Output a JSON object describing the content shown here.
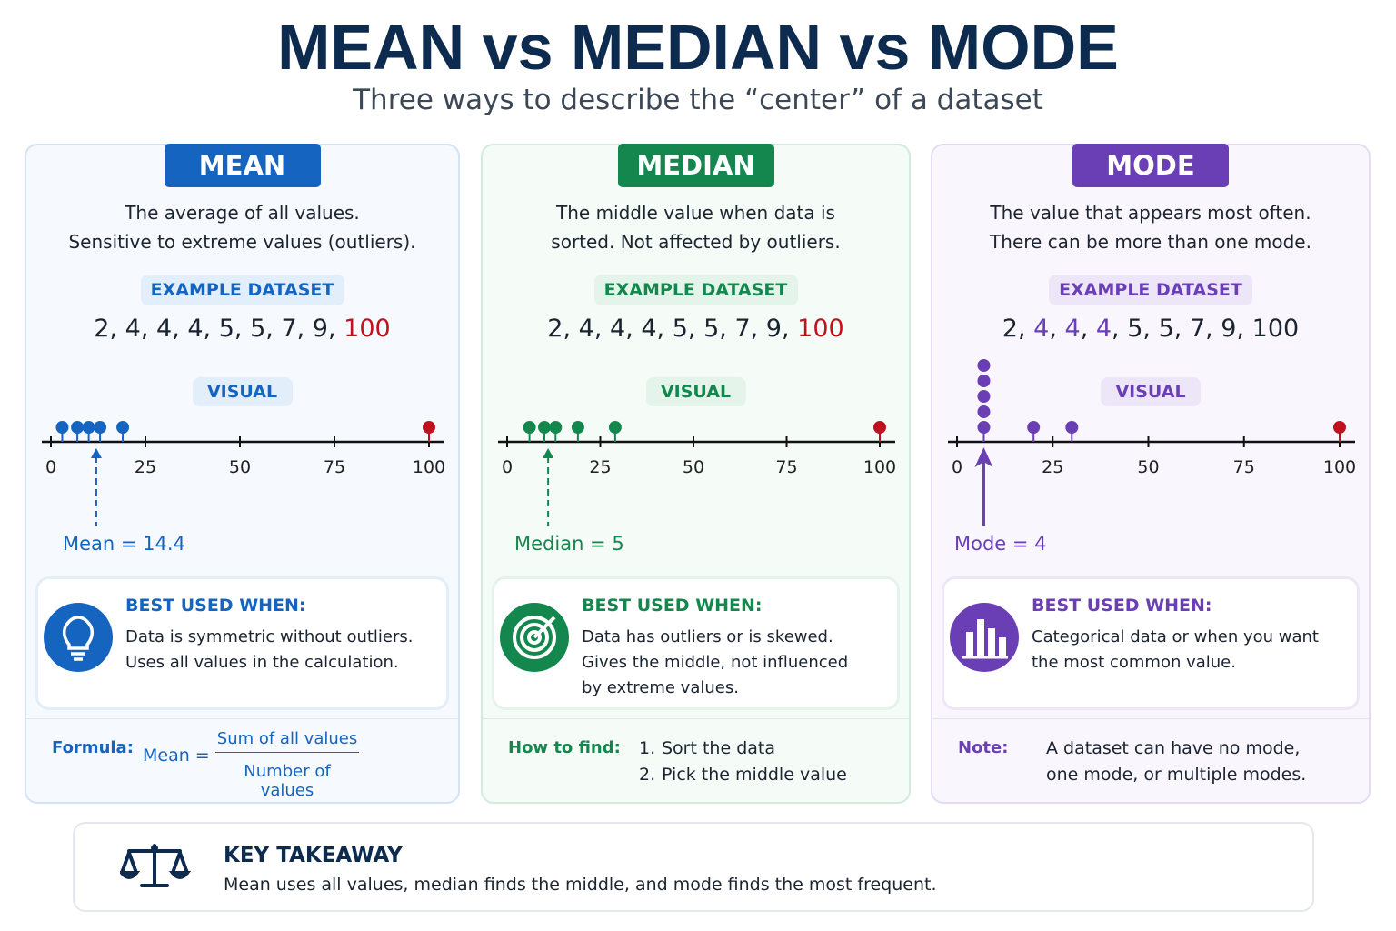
{
  "title": "MEAN vs MEDIAN vs MODE",
  "subtitle": "Three ways to describe the “center” of a dataset",
  "panels": [
    {
      "name": "MEAN",
      "color": "#1565c0",
      "soft": "#e3eefb",
      "description": [
        "The average of all values.",
        "Sensitive to extreme values (outliers)."
      ],
      "example_label": "EXAMPLE DATASET",
      "dataset": [
        2,
        4,
        4,
        4,
        5,
        5,
        7,
        9,
        100
      ],
      "highlight": [
        8
      ],
      "highlight_color": "#c0111f",
      "visual_label": "VISUAL",
      "xlim": [
        0,
        100
      ],
      "xticks": [
        0,
        25,
        50,
        75,
        100
      ],
      "dots": [
        3,
        7,
        10,
        13,
        19
      ],
      "outliers": [
        100
      ],
      "outlier_color": "#c0111f",
      "marker": 12,
      "marker_style": "dashed",
      "marker_label": "Mean = 14.4",
      "best_title": "BEST USED WHEN:",
      "best_text": [
        "Data is symmetric without outliers.",
        "Uses all values in the calculation."
      ],
      "footer": {
        "label": "Formula:",
        "lhs": "Mean =",
        "numerator": "Sum of all values",
        "denominator": "Number of values"
      }
    },
    {
      "name": "MEDIAN",
      "color": "#14874e",
      "soft": "#e4f4ea",
      "description": [
        "The middle value when data is",
        "sorted. Not affected by outliers."
      ],
      "example_label": "EXAMPLE DATASET",
      "dataset": [
        2,
        4,
        4,
        4,
        5,
        5,
        7,
        9,
        100
      ],
      "highlight": [
        8
      ],
      "highlight_color": "#c0111f",
      "visual_label": "VISUAL",
      "xlim": [
        0,
        100
      ],
      "xticks": [
        0,
        25,
        50,
        75,
        100
      ],
      "dots": [
        6,
        10,
        13,
        19,
        29
      ],
      "outliers": [
        100
      ],
      "outlier_color": "#c0111f",
      "marker": 11,
      "marker_style": "dashed",
      "marker_label": "Median = 5",
      "best_title": "BEST USED WHEN:",
      "best_text": [
        "Data has outliers or is skewed.",
        "Gives the middle, not influenced",
        "by extreme values."
      ],
      "footer": {
        "label": "How to find:",
        "steps": [
          "1.",
          "2."
        ],
        "items": [
          "Sort the data",
          "Pick the middle value"
        ]
      }
    },
    {
      "name": "MODE",
      "color": "#6a3fb5",
      "soft": "#ece6f8",
      "description": [
        "The value that appears most often.",
        "There can be more than one mode."
      ],
      "example_label": "EXAMPLE DATASET",
      "dataset": [
        2,
        4,
        4,
        4,
        5,
        5,
        7,
        9,
        100
      ],
      "highlight": [
        1,
        2,
        3
      ],
      "highlight_color": "#6a3fb5",
      "visual_label": "VISUAL",
      "xlim": [
        0,
        100
      ],
      "xticks": [
        0,
        25,
        50,
        75,
        100
      ],
      "dots": [
        7,
        7,
        7,
        7,
        7,
        20,
        30
      ],
      "outliers": [
        100
      ],
      "outlier_color": "#c0111f",
      "marker": 7,
      "marker_style": "solid",
      "marker_label": "Mode = 4",
      "best_title": "BEST USED WHEN:",
      "best_text": [
        "Categorical data or when you want",
        "the most common value."
      ],
      "footer": {
        "label": "Note:",
        "text": [
          "A dataset can have no mode,",
          "one mode, or multiple modes."
        ]
      }
    }
  ],
  "takeaway": {
    "title": "KEY TAKEAWAY",
    "text": "Mean uses all values, median finds the middle, and mode finds the most frequent."
  }
}
